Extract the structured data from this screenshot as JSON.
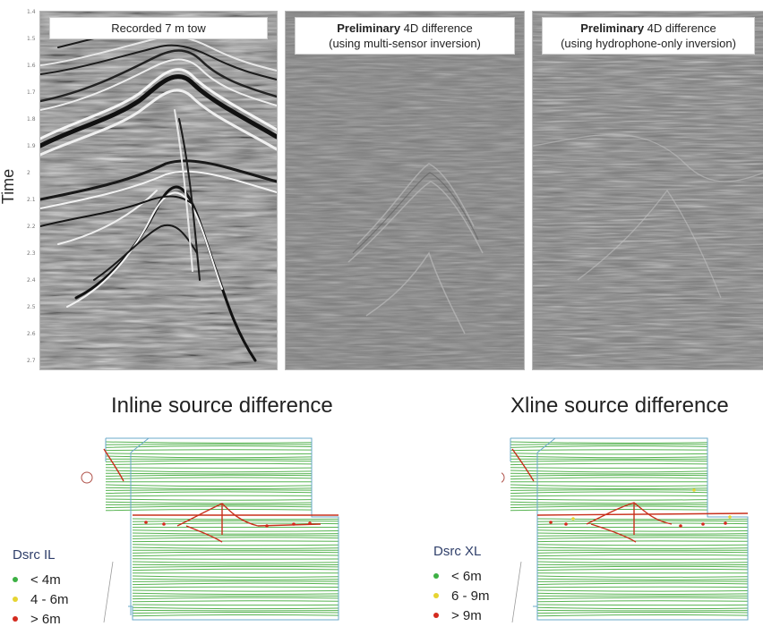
{
  "seismic": {
    "axis_label": "Time",
    "ticks": [
      "1.4",
      "1.5",
      "1.6",
      "1.7",
      "1.8",
      "1.9",
      "2",
      "2.1",
      "2.2",
      "2.3",
      "2.4",
      "2.5",
      "2.6",
      "2.7"
    ],
    "panels": [
      {
        "caption_line1": "Recorded 7 m tow",
        "bold": "",
        "caption_line2": ""
      },
      {
        "bold": "Preliminary",
        "caption_line1": " 4D difference",
        "caption_line2": "(using multi-sensor inversion)"
      },
      {
        "bold": "Preliminary",
        "caption_line1": " 4D difference",
        "caption_line2": "(using hydrophone-only inversion)"
      }
    ]
  },
  "maps": {
    "inline": {
      "title": "Inline source difference",
      "legend_title": "Dsrc IL",
      "legend": [
        {
          "label": "< 4m",
          "color": "#3cb043"
        },
        {
          "label": "4 - 6m",
          "color": "#e6d431"
        },
        {
          "label": "> 6m",
          "color": "#d42a1e"
        }
      ]
    },
    "xline": {
      "title": "Xline source difference",
      "legend_title": "Dsrc XL",
      "legend": [
        {
          "label": "< 6m",
          "color": "#3cb043"
        },
        {
          "label": "6 - 9m",
          "color": "#e6d431"
        },
        {
          "label": "> 9m",
          "color": "#d42a1e"
        }
      ]
    }
  },
  "colors": {
    "line_green": "#3aa632",
    "outline_blue": "#6aa9c9",
    "hot_red": "#c8301c"
  }
}
